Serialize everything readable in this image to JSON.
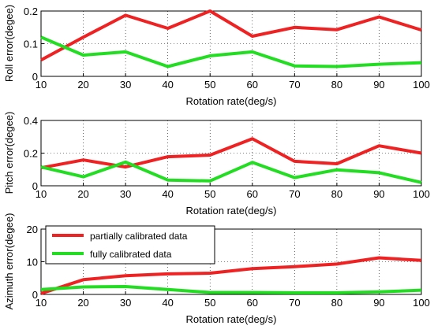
{
  "chart_data": [
    {
      "type": "line",
      "xlabel": "Rotation rate(deg/s)",
      "ylabel": "Roll error(degee)",
      "x": [
        10,
        20,
        30,
        40,
        50,
        60,
        70,
        80,
        90,
        100
      ],
      "xlim": [
        10,
        100
      ],
      "ylim": [
        0,
        0.2
      ],
      "xticks": [
        "10",
        "20",
        "30",
        "40",
        "50",
        "60",
        "70",
        "80",
        "90",
        "100"
      ],
      "yticks": [
        "0",
        "0.1",
        "0.2"
      ],
      "grid": "on",
      "series": [
        {
          "color": "#ee2222",
          "values": [
            0.05,
            0.12,
            0.187,
            0.147,
            0.2,
            0.123,
            0.15,
            0.143,
            0.182,
            0.142
          ]
        },
        {
          "color": "#22dd22",
          "values": [
            0.12,
            0.065,
            0.075,
            0.03,
            0.063,
            0.075,
            0.032,
            0.03,
            0.037,
            0.042
          ]
        }
      ]
    },
    {
      "type": "line",
      "xlabel": "Rotation rate(deg/s)",
      "ylabel": "Pitch error(degee)",
      "x": [
        10,
        20,
        30,
        40,
        50,
        60,
        70,
        80,
        90,
        100
      ],
      "xlim": [
        10,
        100
      ],
      "ylim": [
        0,
        0.4
      ],
      "xticks": [
        "10",
        "20",
        "30",
        "40",
        "50",
        "60",
        "70",
        "80",
        "90",
        "100"
      ],
      "yticks": [
        "0",
        "0.2",
        "0.4"
      ],
      "grid": "on",
      "series": [
        {
          "color": "#ee2222",
          "values": [
            0.11,
            0.158,
            0.115,
            0.178,
            0.188,
            0.288,
            0.15,
            0.135,
            0.245,
            0.2
          ]
        },
        {
          "color": "#22dd22",
          "values": [
            0.115,
            0.055,
            0.145,
            0.035,
            0.03,
            0.143,
            0.05,
            0.098,
            0.08,
            0.02
          ]
        }
      ]
    },
    {
      "type": "line",
      "xlabel": "Rotation rate(deg/s)",
      "ylabel": "Azimuth error(degee)",
      "x": [
        10,
        20,
        30,
        40,
        50,
        60,
        70,
        80,
        90,
        100
      ],
      "xlim": [
        10,
        100
      ],
      "ylim": [
        0,
        20
      ],
      "xticks": [
        "10",
        "20",
        "30",
        "40",
        "50",
        "60",
        "70",
        "80",
        "90",
        "100"
      ],
      "yticks": [
        "0",
        "10",
        "20"
      ],
      "grid": "on",
      "legend_position": "top-left",
      "series": [
        {
          "name": "partially calibrated data",
          "color": "#ee2222",
          "values": [
            0.3,
            4.5,
            5.7,
            6.3,
            6.5,
            7.9,
            8.5,
            9.3,
            11.2,
            10.4
          ]
        },
        {
          "name": "fully calibrated data",
          "color": "#22dd22",
          "values": [
            1.5,
            2.3,
            2.4,
            1.5,
            0.6,
            0.6,
            0.5,
            0.5,
            0.8,
            1.3
          ]
        }
      ]
    }
  ]
}
